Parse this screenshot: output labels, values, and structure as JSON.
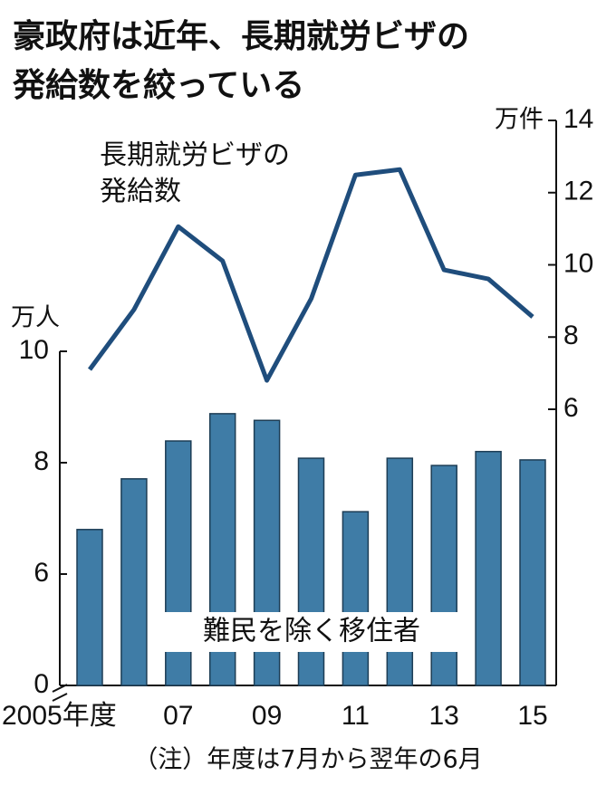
{
  "chart_data": {
    "type": "bar-line",
    "title_lines": [
      "豪政府は近年、長期就労ビザの",
      "発給数を絞っている"
    ],
    "y_label": "万人",
    "y2_label": "万件",
    "note": "（注）年度は7月から翌年の6月",
    "categories": [
      "2005年度",
      null,
      "07",
      null,
      "09",
      null,
      "11",
      null,
      "13",
      null,
      "15"
    ],
    "series": [
      {
        "name": "難民を除く移住者",
        "type": "bar",
        "color": "#3f7ca6",
        "values": [
          6.8,
          7.71,
          8.39,
          8.88,
          8.76,
          8.08,
          7.12,
          8.08,
          7.95,
          8.2,
          8.05
        ]
      },
      {
        "name": "長期就労ビザの発給数",
        "type": "line",
        "axis": "y2",
        "color": "#1f4d7c",
        "values": [
          7.1,
          8.76,
          11.06,
          10.11,
          6.8,
          9.06,
          12.49,
          12.64,
          9.86,
          9.61,
          8.56
        ]
      }
    ],
    "ylim": [
      0,
      10
    ],
    "ybreak": [
      0,
      4
    ],
    "yticks": [
      0,
      6,
      8,
      10
    ],
    "y2lim": [
      6,
      14
    ],
    "y2ticks": [
      6,
      8,
      10,
      12,
      14
    ]
  }
}
